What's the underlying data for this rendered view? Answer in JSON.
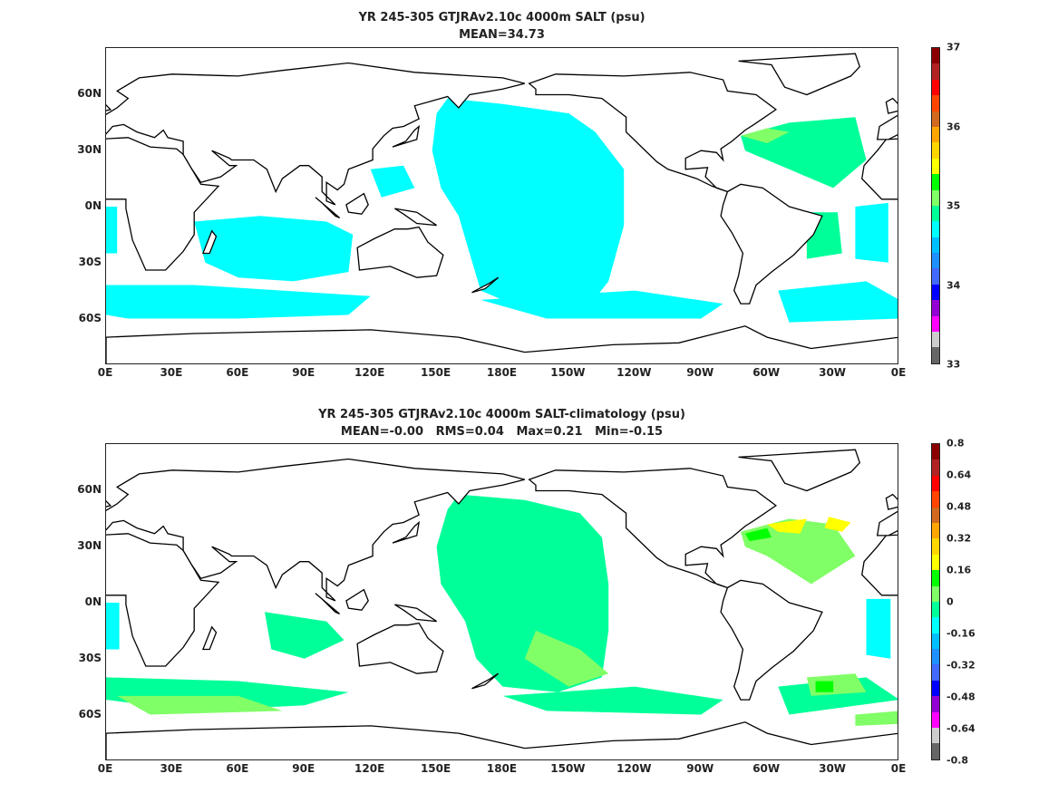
{
  "panels": [
    {
      "title": "YR 245-305 GTJRAv2.10c 4000m SALT (psu)",
      "subtitle": "MEAN=34.73",
      "colorbar_labels": [
        "37",
        "36",
        "35",
        "34",
        "33"
      ]
    },
    {
      "title": "YR 245-305 GTJRAv2.10c 4000m SALT-climatology (psu)",
      "subtitle": "MEAN=-0.00   RMS=0.04   Max=0.21   Min=-0.15",
      "colorbar_labels": [
        "0.8",
        "0.64",
        "0.48",
        "0.32",
        "0.16",
        "0",
        "-0.16",
        "-0.32",
        "-0.48",
        "-0.64",
        "-0.8"
      ]
    }
  ],
  "x_ticks": [
    "0E",
    "30E",
    "60E",
    "90E",
    "120E",
    "150E",
    "180E",
    "150W",
    "120W",
    "90W",
    "60W",
    "30W",
    "0E"
  ],
  "y_ticks": [
    "60N",
    "30N",
    "0N",
    "30S",
    "60S"
  ],
  "colorbar_colors": [
    "#8b0000",
    "#b22222",
    "#ff0000",
    "#ff4500",
    "#d2691e",
    "#ffa500",
    "#ffd700",
    "#ffff00",
    "#00ff00",
    "#80ff66",
    "#00ff99",
    "#00ffff",
    "#00bfff",
    "#1e90ff",
    "#4169ff",
    "#0000ff",
    "#9400d3",
    "#ff00ff",
    "#cccccc",
    "#666666"
  ]
}
